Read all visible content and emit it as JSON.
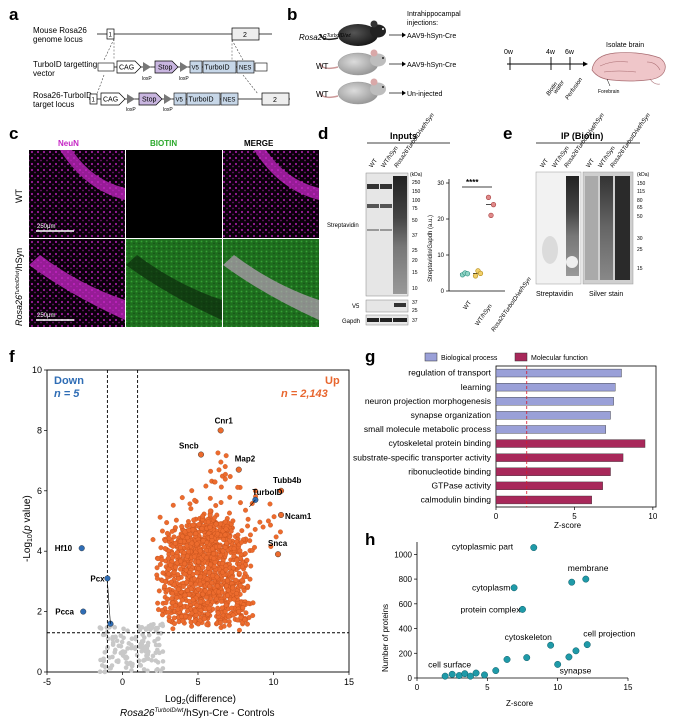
{
  "panels": {
    "a": "a",
    "b": "b",
    "c": "c",
    "d": "d",
    "e": "e",
    "f": "f",
    "g": "g",
    "h": "h"
  },
  "panel_a": {
    "rows": [
      "Mouse Rosa26 genome locus",
      "TurboID targetting vector",
      "Rosa26-TurboID target locus"
    ],
    "row1_label": "Mouse Rosa26",
    "row1_label2": "genome locus",
    "row2_label": "TurboID targetting",
    "row2_label2": "vector",
    "row3_label": "Rosa26-TurboID",
    "row3_label2": "target locus",
    "exon1": "1",
    "exon2": "2",
    "cag": "CAG",
    "stop": "Stop",
    "v5": "V5",
    "turboid": "TurboID",
    "nes": "NES",
    "loxp": "loxP"
  },
  "panel_b": {
    "mouse1": "Rosa26",
    "mouse1_sup": "TurboID/wt",
    "mouse2": "WT",
    "mouse3": "WT",
    "injections_title": "Intrahippocampal",
    "injections_title2": "injections:",
    "inj1": "AAV9-hSyn-Cre",
    "inj2": "AAV9-hSyn-Cre",
    "inj3": "Un-injected",
    "t0": "0w",
    "t4": "4w",
    "t6": "6w",
    "biotin": "Biotin",
    "water": "water",
    "perfusion": "Perfusion",
    "isolate": "Isolate brain",
    "forebrain": "Forebrain"
  },
  "panel_c": {
    "neun": "NeuN",
    "biotin": "BIOTIN",
    "merge": "MERGE",
    "row1": "WT",
    "row2": "Rosa26",
    "row2_sup": "TurboID/wt",
    "row2_tail": "/hSyn",
    "scale": "250μm"
  },
  "panel_d": {
    "title": "Inputs",
    "lanes": [
      "WT",
      "WT/hSyn",
      "Rosa26TurboID/wt/hSyn"
    ],
    "kda": "(kDa)",
    "markers": [
      "250",
      "150",
      "100",
      "75",
      "50",
      "37",
      "25",
      "20",
      "15",
      "10"
    ],
    "v5_markers": [
      "37",
      "25"
    ],
    "gapdh_markers": [
      "37"
    ],
    "streptavidin": "Streptavidin",
    "v5": "V5",
    "gapdh": "Gapdh",
    "sig": "****",
    "ylabel": "Streptavidin/Gapdh (a.u.)",
    "yticks": [
      "0",
      "10",
      "20",
      "30"
    ],
    "xcats": [
      "WT",
      "WT/hSyn",
      "Rosa26TurboID/wt/hSyn"
    ]
  },
  "panel_e": {
    "title": "IP (Biotin)",
    "lanes1": [
      "WT",
      "WT/hSyn",
      "Rosa26TurboID/wt/hSyn"
    ],
    "lanes2": [
      "WT",
      "WT/hSyn",
      "Rosa26TurboID/wt/hSyn"
    ],
    "kda": "(kDa)",
    "markers": [
      "150",
      "115",
      "80",
      "65",
      "50",
      "30",
      "25",
      "15"
    ],
    "streptavidin": "Streptavidin",
    "silver": "Silver stain"
  },
  "panel_f": {
    "down_title": "Down",
    "down_n": "n = 5",
    "up_title": "Up",
    "up_n": "n = 2,143",
    "ylabel": "-Log10(p value)",
    "xlabel": "Log2(difference)",
    "xsub": "Rosa26TurboID/wt/hSyn-Cre - Controls",
    "xsub_a": "Rosa26",
    "xsub_sup": "TurboID/wt",
    "xsub_b": "/hSyn-Cre - Controls",
    "genes": [
      "Cnr1",
      "Sncb",
      "Map2",
      "Tubb4b",
      "TurboID",
      "Ncam1",
      "Snca",
      "Hf10",
      "Pcx",
      "Pcca"
    ]
  },
  "panel_g": {
    "legend1": "Biological process",
    "legend2": "Molecular function",
    "xlabel": "Z-score",
    "xticks": [
      "0",
      "5",
      "10"
    ]
  },
  "panel_h": {
    "ylabel": "Number of proteins",
    "xlabel": "Z-score",
    "yticks": [
      "0",
      "200",
      "400",
      "600",
      "800",
      "1000"
    ],
    "xticks": [
      "0",
      "5",
      "10",
      "15"
    ],
    "labels": [
      "cytoplasmic part",
      "membrane",
      "cytoplasm",
      "protein complex",
      "cell projection",
      "cytoskeleton",
      "synapse",
      "cell surface"
    ]
  },
  "chart_data": [
    {
      "type": "scatter",
      "panel": "d",
      "xlabel": "",
      "ylabel": "Streptavidin/Gapdh (a.u.)",
      "ylim": [
        0,
        30
      ],
      "categories": [
        "WT",
        "WT/hSyn",
        "Rosa26TurboID/wt/hSyn"
      ],
      "series": [
        {
          "category": "WT",
          "values": [
            4.5,
            5.0,
            4.8
          ],
          "mean": 4.8
        },
        {
          "category": "WT/hSyn",
          "values": [
            4.2,
            5.6,
            4.9
          ],
          "mean": 4.9
        },
        {
          "category": "Rosa26TurboID/wt/hSyn",
          "values": [
            26,
            21,
            24
          ],
          "mean": 24
        }
      ],
      "annotation": "****"
    },
    {
      "type": "scatter",
      "panel": "f",
      "xlabel": "Log2(difference)",
      "ylabel": "-Log10(p value)",
      "xlim": [
        -5,
        15
      ],
      "ylim": [
        0,
        10
      ],
      "xticks": [
        -5,
        0,
        5,
        10,
        15
      ],
      "yticks": [
        0,
        2,
        4,
        6,
        8,
        10
      ],
      "thresholds": {
        "x": [
          -1,
          1
        ],
        "y": 1.3
      },
      "labeled_points": [
        {
          "label": "Cnr1",
          "x": 6.5,
          "y": 8.0,
          "group": "up"
        },
        {
          "label": "Sncb",
          "x": 5.2,
          "y": 7.2,
          "group": "up"
        },
        {
          "label": "Map2",
          "x": 7.7,
          "y": 6.7,
          "group": "up"
        },
        {
          "label": "Tubb4b",
          "x": 10.5,
          "y": 6.0,
          "group": "up"
        },
        {
          "label": "TurboID",
          "x": 8.8,
          "y": 5.7,
          "group": "turbo"
        },
        {
          "label": "Ncam1",
          "x": 10.5,
          "y": 5.2,
          "group": "up"
        },
        {
          "label": "Snca",
          "x": 10.3,
          "y": 3.9,
          "group": "up"
        },
        {
          "label": "Hf10",
          "x": -2.7,
          "y": 4.1,
          "group": "down"
        },
        {
          "label": "Pcx",
          "x": -1.0,
          "y": 3.1,
          "group": "down"
        },
        {
          "label": "Pcca",
          "x": -2.6,
          "y": 2.0,
          "group": "down"
        },
        {
          "label": "",
          "x": -0.8,
          "y": 1.6,
          "group": "down"
        }
      ]
    },
    {
      "type": "bar",
      "panel": "g",
      "orientation": "horizontal",
      "xlabel": "Z-score",
      "xlim": [
        0,
        10
      ],
      "threshold": 1.96,
      "categories": [
        "regulation of transport",
        "learning",
        "neuron projection morphogenesis",
        "synapse organization",
        "small molecule metabolic process",
        "cytoskeletal protein binding",
        "substrate-specific transporter activity",
        "ribonucleotide binding",
        "GTPase activity",
        "calmodulin binding"
      ],
      "values": [
        8.0,
        7.6,
        7.5,
        7.3,
        7.0,
        9.5,
        8.1,
        7.3,
        6.8,
        6.1
      ],
      "series_type": [
        "Biological process",
        "Biological process",
        "Biological process",
        "Biological process",
        "Biological process",
        "Molecular function",
        "Molecular function",
        "Molecular function",
        "Molecular function",
        "Molecular function"
      ],
      "colors": {
        "Biological process": "#9aa0d8",
        "Molecular function": "#a8285a"
      }
    },
    {
      "type": "scatter",
      "panel": "h",
      "xlabel": "Z-score",
      "ylabel": "Number of proteins",
      "xlim": [
        0,
        15
      ],
      "ylim": [
        0,
        1100
      ],
      "points": [
        {
          "label": "cytoplasmic part",
          "x": 8.3,
          "y": 1055
        },
        {
          "label": "membrane",
          "x": 12.0,
          "y": 800
        },
        {
          "label": "",
          "x": 11.0,
          "y": 775
        },
        {
          "label": "cytoplasm",
          "x": 6.9,
          "y": 730
        },
        {
          "label": "protein complex",
          "x": 7.5,
          "y": 555
        },
        {
          "label": "cell projection",
          "x": 12.1,
          "y": 270
        },
        {
          "label": "",
          "x": 11.3,
          "y": 220
        },
        {
          "label": "cytoskeleton",
          "x": 9.5,
          "y": 265
        },
        {
          "label": "",
          "x": 10.8,
          "y": 170
        },
        {
          "label": "synapse",
          "x": 10.0,
          "y": 110
        },
        {
          "label": "",
          "x": 7.8,
          "y": 165
        },
        {
          "label": "",
          "x": 6.4,
          "y": 150
        },
        {
          "label": "",
          "x": 5.6,
          "y": 60
        },
        {
          "label": "cell surface",
          "x": 2.5,
          "y": 30
        },
        {
          "label": "",
          "x": 3.0,
          "y": 20
        },
        {
          "label": "",
          "x": 3.4,
          "y": 35
        },
        {
          "label": "",
          "x": 3.8,
          "y": 15
        },
        {
          "label": "",
          "x": 4.2,
          "y": 40
        },
        {
          "label": "",
          "x": 2.0,
          "y": 15
        },
        {
          "label": "",
          "x": 4.8,
          "y": 25
        }
      ],
      "color": "#1f9aa8"
    }
  ]
}
